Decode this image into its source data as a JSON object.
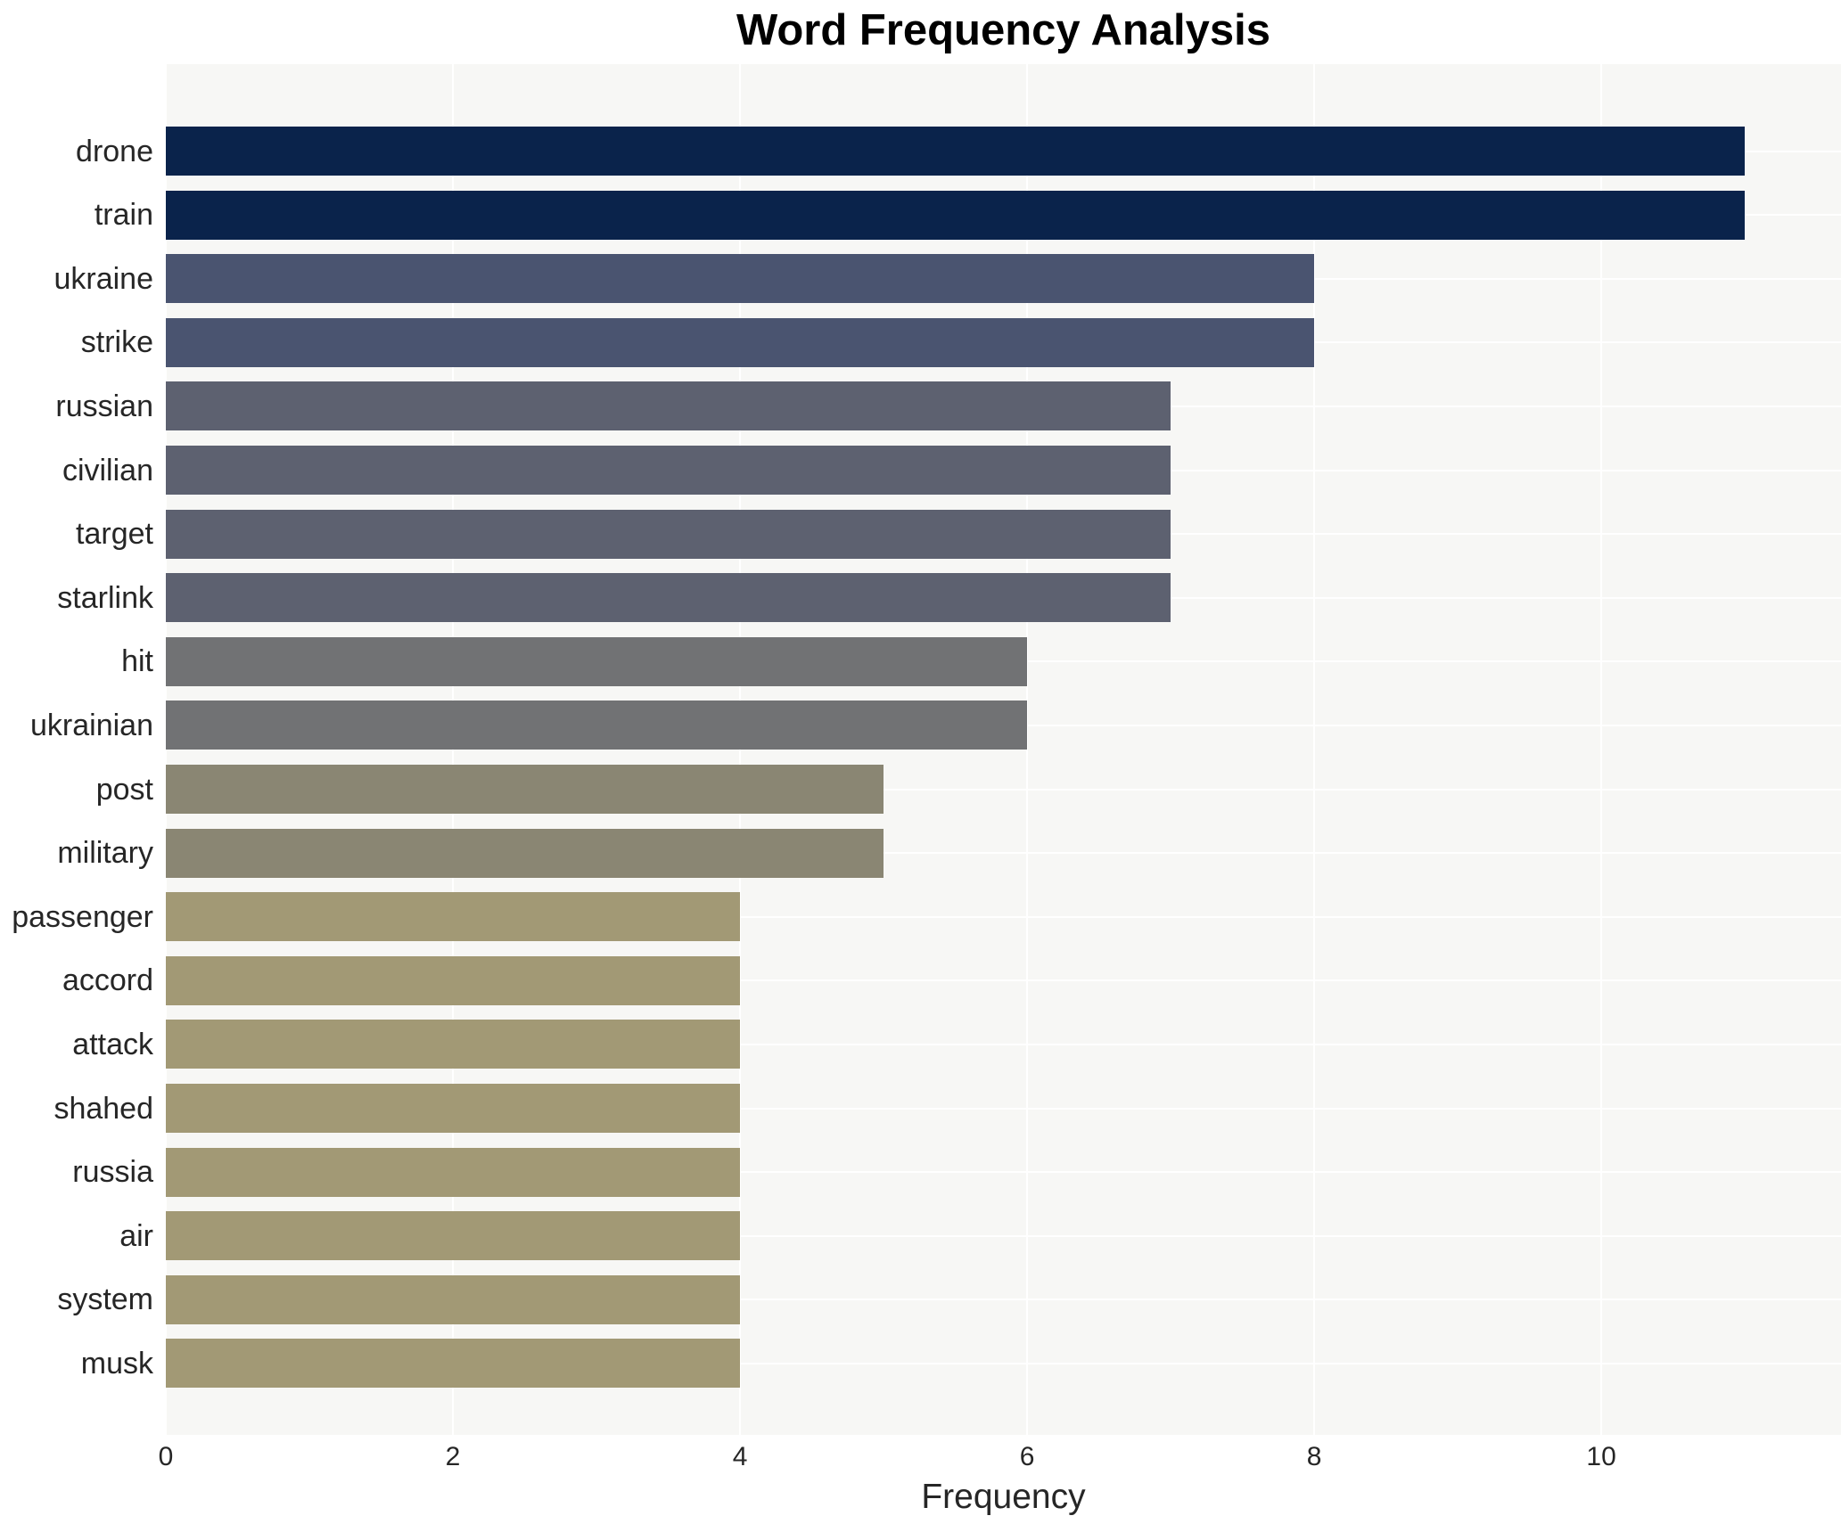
{
  "title": "Word Frequency Analysis",
  "xlabel": "Frequency",
  "chart_data": {
    "type": "bar",
    "orientation": "horizontal",
    "title": "Word Frequency Analysis",
    "xlabel": "Frequency",
    "ylabel": "",
    "categories": [
      "drone",
      "train",
      "ukraine",
      "strike",
      "russian",
      "civilian",
      "target",
      "starlink",
      "hit",
      "ukrainian",
      "post",
      "military",
      "passenger",
      "accord",
      "attack",
      "shahed",
      "russia",
      "air",
      "system",
      "musk"
    ],
    "values": [
      11,
      11,
      8,
      8,
      7,
      7,
      7,
      7,
      6,
      6,
      5,
      5,
      4,
      4,
      4,
      4,
      4,
      4,
      4,
      4
    ],
    "bar_colors": [
      "#0a234b",
      "#0a234b",
      "#4a5470",
      "#4a5470",
      "#5d6170",
      "#5d6170",
      "#5d6170",
      "#5d6170",
      "#717274",
      "#717274",
      "#8a8673",
      "#8a8673",
      "#a29975",
      "#a29975",
      "#a29975",
      "#a29975",
      "#a29975",
      "#a29975",
      "#a29975",
      "#a29975"
    ],
    "x_ticks": [
      0,
      2,
      4,
      6,
      8,
      10
    ],
    "xlim": [
      0,
      11.67
    ],
    "grid": true,
    "legend": false,
    "plot_background": "#f7f7f5",
    "grid_color": "#ffffff",
    "tick_label_color": "#262626",
    "title_color": "#000000"
  }
}
